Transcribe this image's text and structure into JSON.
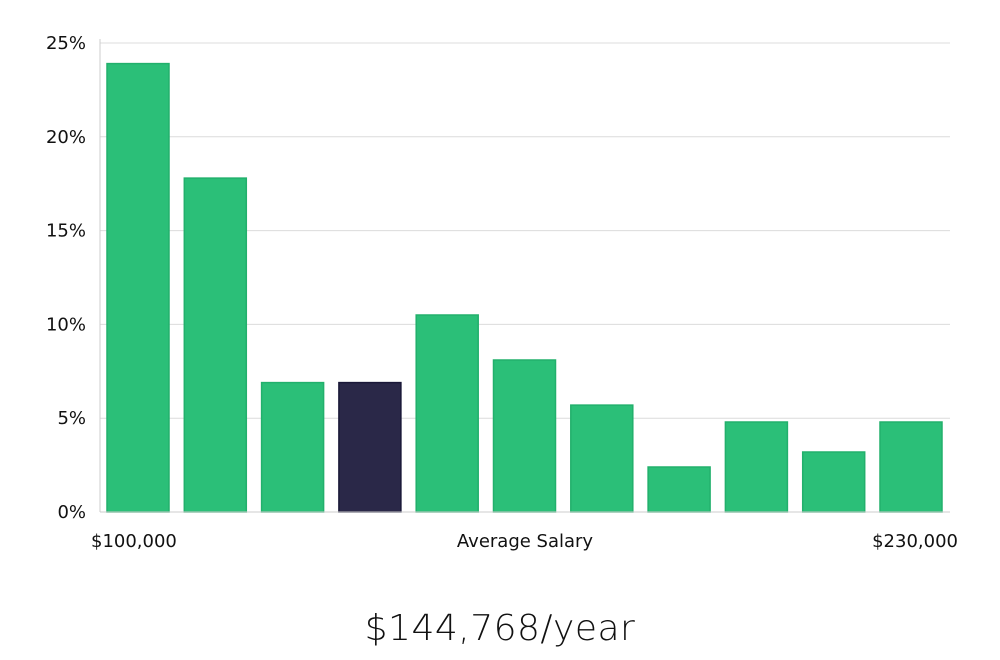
{
  "chart_data": {
    "type": "bar",
    "title": "",
    "ylabel": "",
    "xlabel": "Average Salary",
    "x_range_labels": [
      "$100,000",
      "$230,000"
    ],
    "ylim": [
      0,
      25
    ],
    "y_ticks": [
      0,
      5,
      10,
      15,
      20,
      25
    ],
    "y_tick_suffix": "%",
    "grid": true,
    "values": [
      23.9,
      17.8,
      6.9,
      6.9,
      10.5,
      8.1,
      5.7,
      2.4,
      4.8,
      3.2,
      4.8
    ],
    "highlight_index": 3,
    "colors": {
      "bar": "#2bbf78",
      "bar_stroke": "#22b06c",
      "highlight": "#2a2848",
      "highlight_stroke": "#1a1838",
      "grid": "#dcdcdc",
      "axis": "#cccccc"
    }
  },
  "summary": {
    "salary_text": "$144,768/year"
  }
}
